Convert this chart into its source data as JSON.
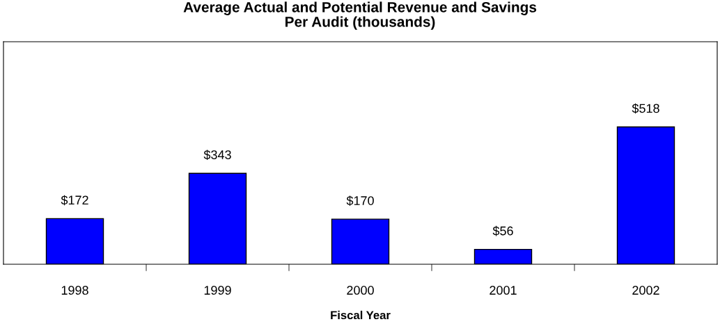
{
  "chart_data": {
    "type": "bar",
    "title": "Average Actual and Potential Revenue and Savings\nPer Audit (thousands)",
    "xlabel": "Fiscal Year",
    "categories": [
      "1998",
      "1999",
      "2000",
      "2001",
      "2002"
    ],
    "values": [
      172,
      343,
      170,
      56,
      518
    ],
    "color": "#0000ff",
    "value_labels": [
      "$172",
      "$343",
      "$170",
      "$56",
      "$518"
    ],
    "grid": false,
    "legend": false
  }
}
